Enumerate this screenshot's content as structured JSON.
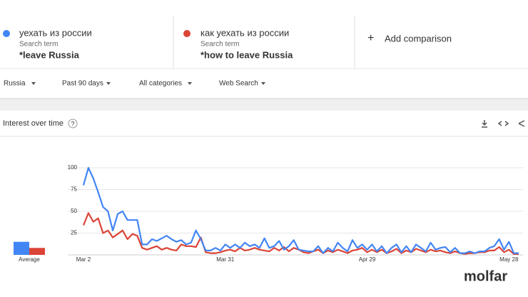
{
  "search_terms": [
    {
      "term": "уехать из россии",
      "sublabel": "Search term",
      "note": "*leave Russia"
    },
    {
      "term": "как уехать из россии",
      "sublabel": "Search term",
      "note": "*how to leave Russia"
    }
  ],
  "add_comparison": "Add comparison",
  "filters": [
    "Russia",
    "Past 90 days",
    "All categories",
    "Web Search"
  ],
  "card_title": "Interest over time",
  "logo": "molfar",
  "chart_data": {
    "type": "line",
    "average_label": "Average",
    "categories": [
      "Mar 2",
      null,
      null,
      null,
      null,
      null,
      null,
      null,
      null,
      null,
      null,
      null,
      null,
      null,
      null,
      null,
      null,
      null,
      null,
      null,
      null,
      null,
      null,
      null,
      null,
      null,
      null,
      null,
      null,
      "Mar 31",
      null,
      null,
      null,
      null,
      null,
      null,
      null,
      null,
      null,
      null,
      null,
      null,
      null,
      null,
      null,
      null,
      null,
      null,
      null,
      null,
      null,
      null,
      null,
      null,
      null,
      null,
      null,
      null,
      "Apr 29",
      null,
      null,
      null,
      null,
      null,
      null,
      null,
      null,
      null,
      null,
      null,
      null,
      null,
      null,
      null,
      null,
      null,
      null,
      null,
      null,
      null,
      null,
      null,
      null,
      null,
      null,
      null,
      null,
      "May 28",
      null,
      null
    ],
    "series": [
      {
        "color": "#4285f4",
        "average": 15,
        "values": [
          80,
          100,
          88,
          72,
          55,
          50,
          28,
          47,
          50,
          40,
          40,
          40,
          12,
          12,
          18,
          16,
          19,
          22,
          18,
          15,
          17,
          12,
          14,
          28,
          18,
          5,
          5,
          8,
          5,
          12,
          8,
          12,
          8,
          14,
          10,
          12,
          8,
          19,
          8,
          10,
          16,
          6,
          10,
          17,
          6,
          5,
          4,
          4,
          10,
          2,
          8,
          4,
          14,
          8,
          4,
          17,
          8,
          12,
          6,
          12,
          4,
          10,
          2,
          8,
          12,
          3,
          10,
          3,
          12,
          8,
          4,
          14,
          6,
          8,
          9,
          3,
          8,
          2,
          2,
          4,
          2,
          4,
          4,
          8,
          10,
          18,
          6,
          15,
          2,
          2
        ]
      },
      {
        "color": "#db4437",
        "average": 8,
        "values": [
          34,
          48,
          38,
          42,
          25,
          28,
          20,
          24,
          28,
          18,
          24,
          22,
          8,
          6,
          8,
          10,
          6,
          8,
          6,
          5,
          12,
          10,
          10,
          9,
          20,
          3,
          2,
          2,
          3,
          5,
          6,
          4,
          8,
          5,
          6,
          8,
          6,
          5,
          4,
          8,
          5,
          9,
          4,
          8,
          6,
          3,
          2,
          4,
          6,
          2,
          5,
          3,
          6,
          4,
          2,
          5,
          6,
          8,
          3,
          6,
          3,
          6,
          2,
          4,
          7,
          2,
          5,
          3,
          7,
          5,
          3,
          6,
          4,
          5,
          3,
          2,
          4,
          2,
          1,
          2,
          2,
          3,
          3,
          5,
          5,
          9,
          3,
          6,
          1,
          1
        ]
      }
    ],
    "ylim": [
      0,
      100
    ],
    "yticks": [
      25,
      50,
      75,
      100
    ],
    "grid": true
  }
}
